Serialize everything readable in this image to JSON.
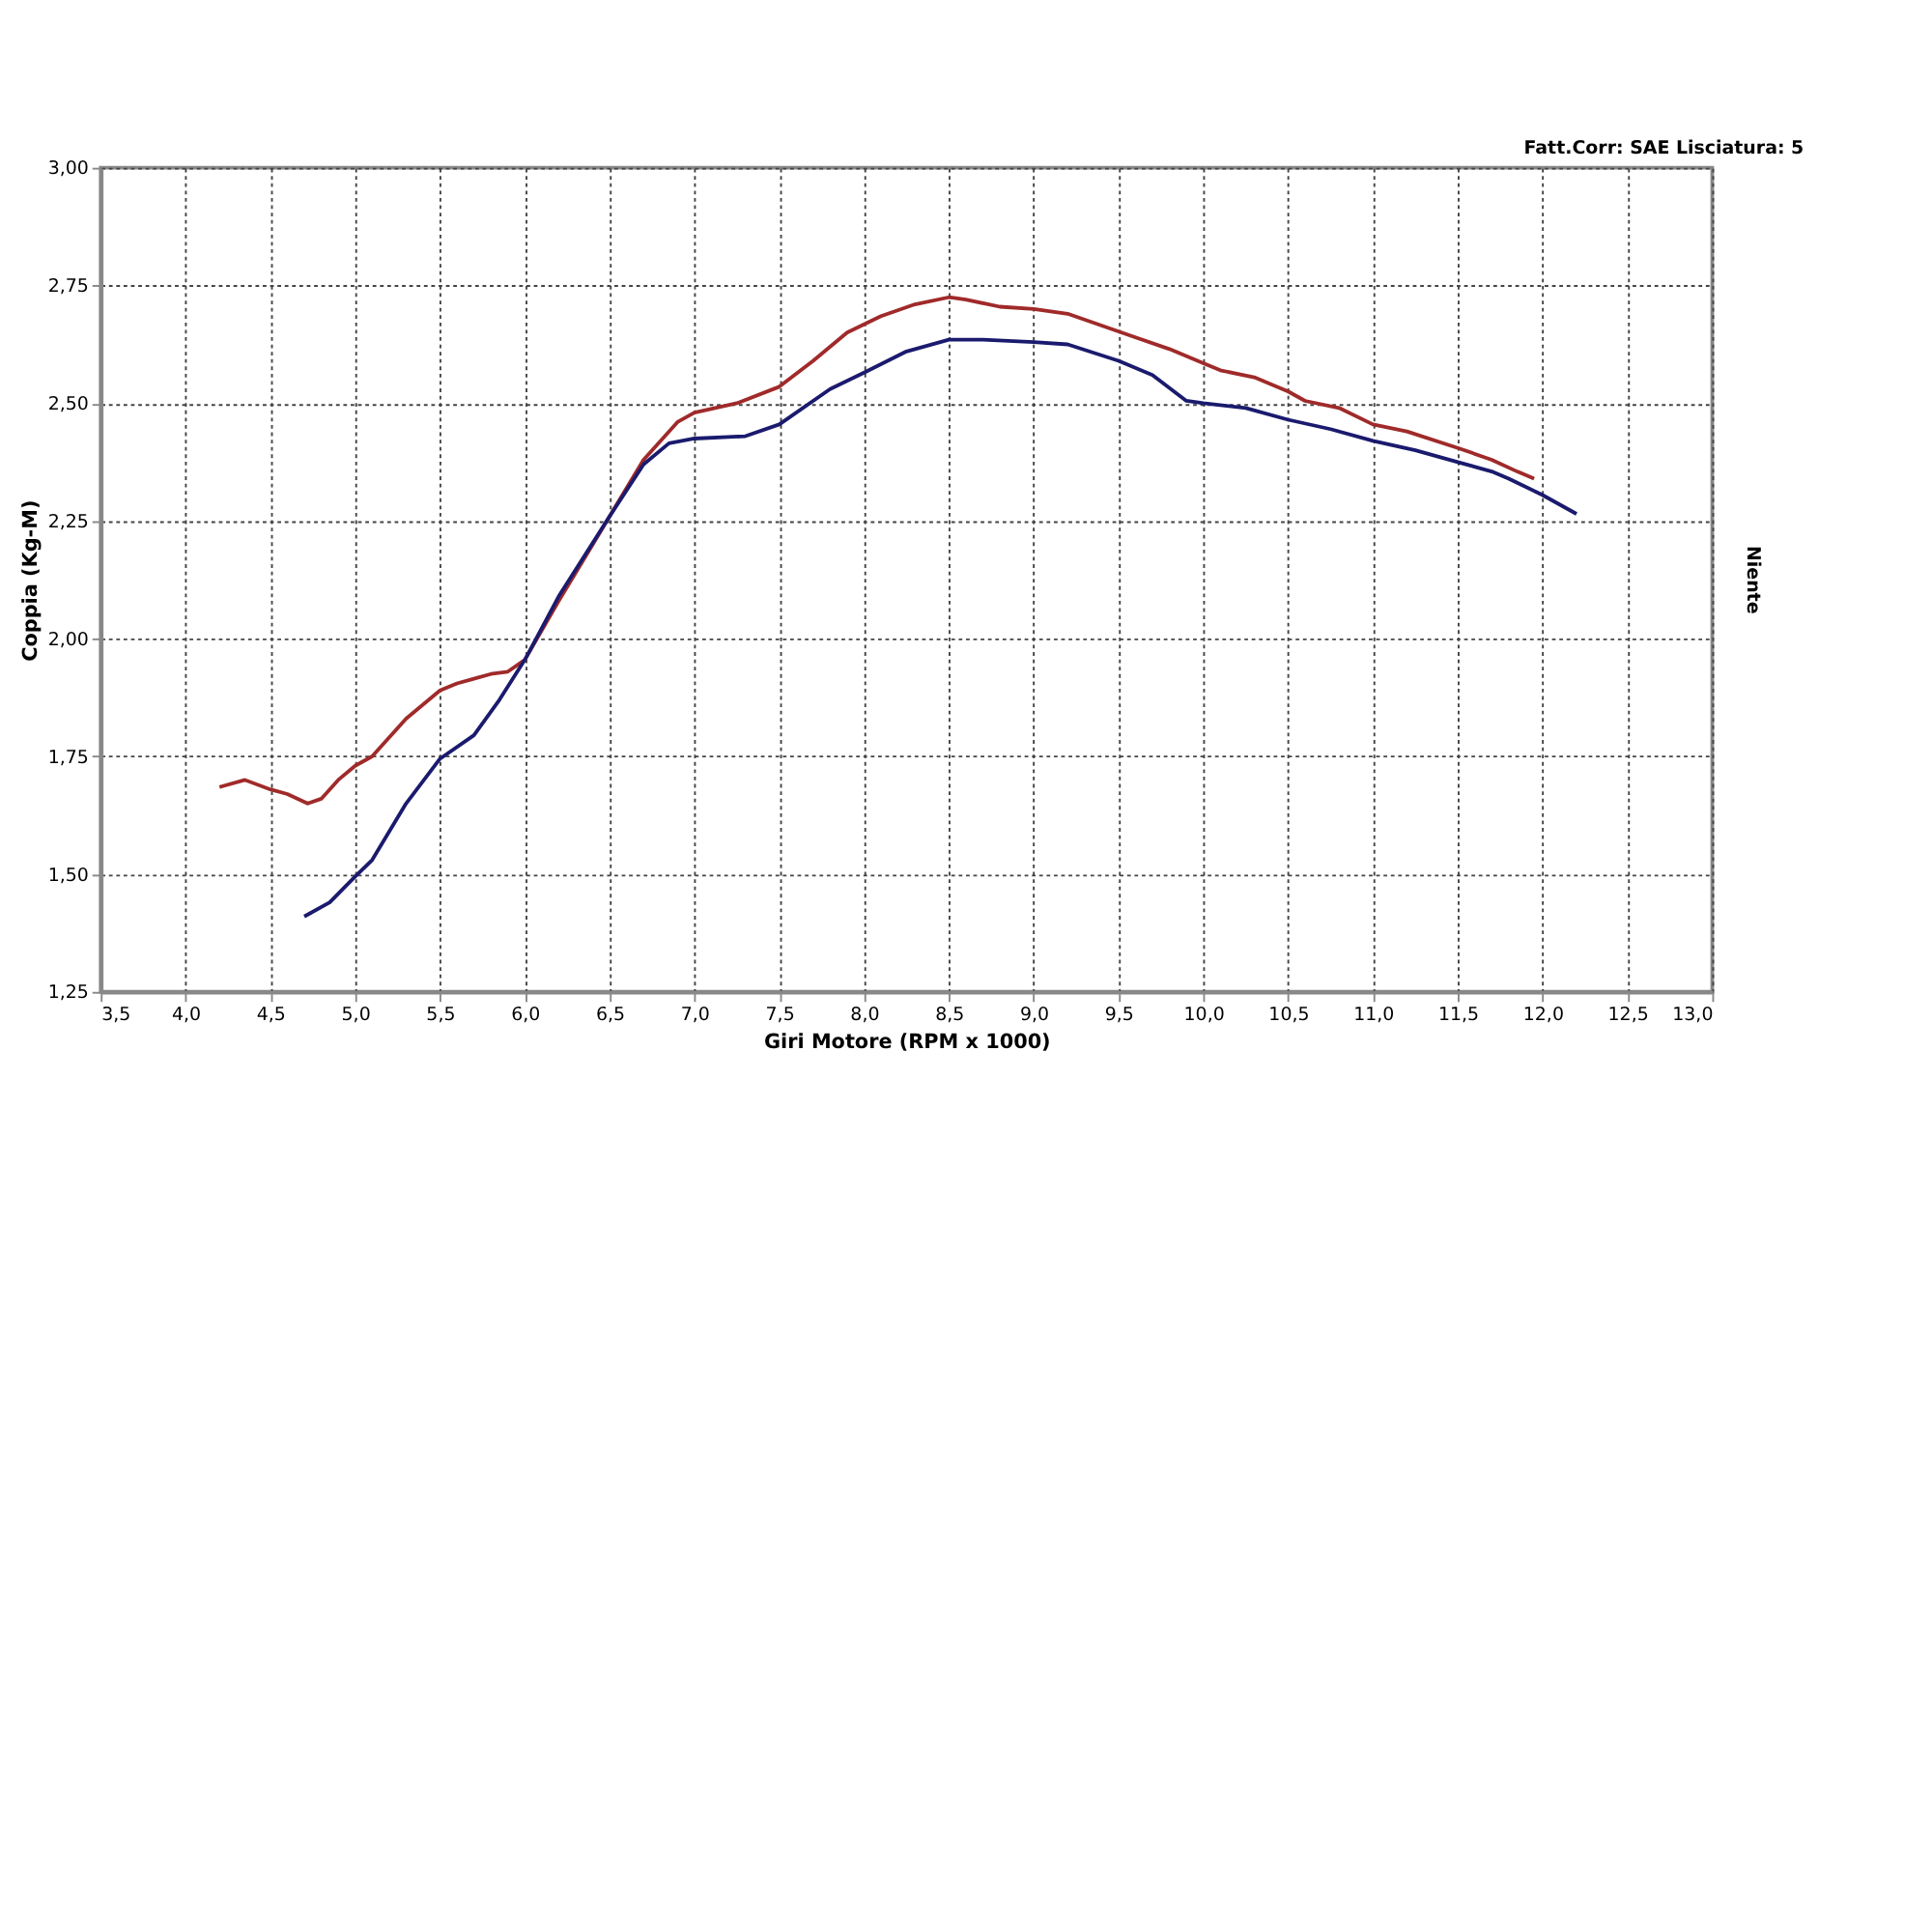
{
  "chart_data": {
    "type": "line",
    "xlabel": "Giri Motore (RPM x 1000)",
    "ylabel": "Coppia (Kg-M)",
    "annotations": [
      "Fatt.Corr: SAE  Lisciatura: 5",
      "Niente"
    ],
    "xlim": [
      3.5,
      13.0
    ],
    "ylim": [
      1.25,
      3.0
    ],
    "xticks": [
      {
        "value": 3.5,
        "label": "3,5"
      },
      {
        "value": 4.0,
        "label": "4,0"
      },
      {
        "value": 4.5,
        "label": "4,5"
      },
      {
        "value": 5.0,
        "label": "5,0"
      },
      {
        "value": 5.5,
        "label": "5,5"
      },
      {
        "value": 6.0,
        "label": "6,0"
      },
      {
        "value": 6.5,
        "label": "6,5"
      },
      {
        "value": 7.0,
        "label": "7,0"
      },
      {
        "value": 7.5,
        "label": "7,5"
      },
      {
        "value": 8.0,
        "label": "8,0"
      },
      {
        "value": 8.5,
        "label": "8,5"
      },
      {
        "value": 9.0,
        "label": "9,0"
      },
      {
        "value": 9.5,
        "label": "9,5"
      },
      {
        "value": 10.0,
        "label": "10,0"
      },
      {
        "value": 10.5,
        "label": "10,5"
      },
      {
        "value": 11.0,
        "label": "11,0"
      },
      {
        "value": 11.5,
        "label": "11,5"
      },
      {
        "value": 12.0,
        "label": "12,0"
      },
      {
        "value": 12.5,
        "label": "12,5"
      },
      {
        "value": 13.0,
        "label": "13,0"
      }
    ],
    "yticks": [
      {
        "value": 1.25,
        "label": "1,25"
      },
      {
        "value": 1.5,
        "label": "1,50"
      },
      {
        "value": 1.75,
        "label": "1,75"
      },
      {
        "value": 2.0,
        "label": "2,00"
      },
      {
        "value": 2.25,
        "label": "2,25"
      },
      {
        "value": 2.5,
        "label": "2,50"
      },
      {
        "value": 2.75,
        "label": "2,75"
      },
      {
        "value": 3.0,
        "label": "3,00"
      }
    ],
    "grid": true,
    "line_style": "solid",
    "series": [
      {
        "color": "#a02a2a",
        "x": [
          4.2,
          4.35,
          4.5,
          4.6,
          4.72,
          4.8,
          4.9,
          5.0,
          5.1,
          5.2,
          5.3,
          5.5,
          5.6,
          5.7,
          5.8,
          5.9,
          6.0,
          6.2,
          6.4,
          6.5,
          6.7,
          6.9,
          7.0,
          7.25,
          7.5,
          7.7,
          7.9,
          8.1,
          8.3,
          8.5,
          8.6,
          8.8,
          9.0,
          9.2,
          9.4,
          9.6,
          9.8,
          10.0,
          10.1,
          10.3,
          10.5,
          10.6,
          10.8,
          11.0,
          11.2,
          11.5,
          11.7,
          11.85,
          11.95
        ],
        "values": [
          1.685,
          1.7,
          1.68,
          1.67,
          1.65,
          1.66,
          1.7,
          1.73,
          1.75,
          1.79,
          1.83,
          1.89,
          1.905,
          1.915,
          1.925,
          1.93,
          1.955,
          2.08,
          2.2,
          2.26,
          2.38,
          2.46,
          2.48,
          2.5,
          2.535,
          2.59,
          2.65,
          2.685,
          2.71,
          2.725,
          2.72,
          2.705,
          2.7,
          2.69,
          2.665,
          2.64,
          2.615,
          2.585,
          2.57,
          2.555,
          2.525,
          2.505,
          2.49,
          2.455,
          2.44,
          2.405,
          2.38,
          2.355,
          2.34
        ]
      },
      {
        "color": "#1a1a6e",
        "x": [
          4.7,
          4.85,
          5.0,
          5.1,
          5.3,
          5.5,
          5.7,
          5.85,
          6.0,
          6.2,
          6.5,
          6.7,
          6.85,
          7.0,
          7.3,
          7.5,
          7.8,
          8.0,
          8.25,
          8.5,
          8.7,
          9.0,
          9.2,
          9.5,
          9.7,
          9.9,
          10.0,
          10.25,
          10.5,
          10.75,
          11.0,
          11.25,
          11.5,
          11.7,
          11.8,
          12.0,
          12.2
        ],
        "values": [
          1.41,
          1.44,
          1.495,
          1.53,
          1.65,
          1.745,
          1.795,
          1.87,
          1.955,
          2.09,
          2.26,
          2.37,
          2.415,
          2.425,
          2.43,
          2.455,
          2.53,
          2.565,
          2.61,
          2.635,
          2.635,
          2.63,
          2.625,
          2.59,
          2.56,
          2.505,
          2.5,
          2.49,
          2.465,
          2.445,
          2.42,
          2.4,
          2.375,
          2.355,
          2.34,
          2.305,
          2.265
        ]
      }
    ]
  }
}
